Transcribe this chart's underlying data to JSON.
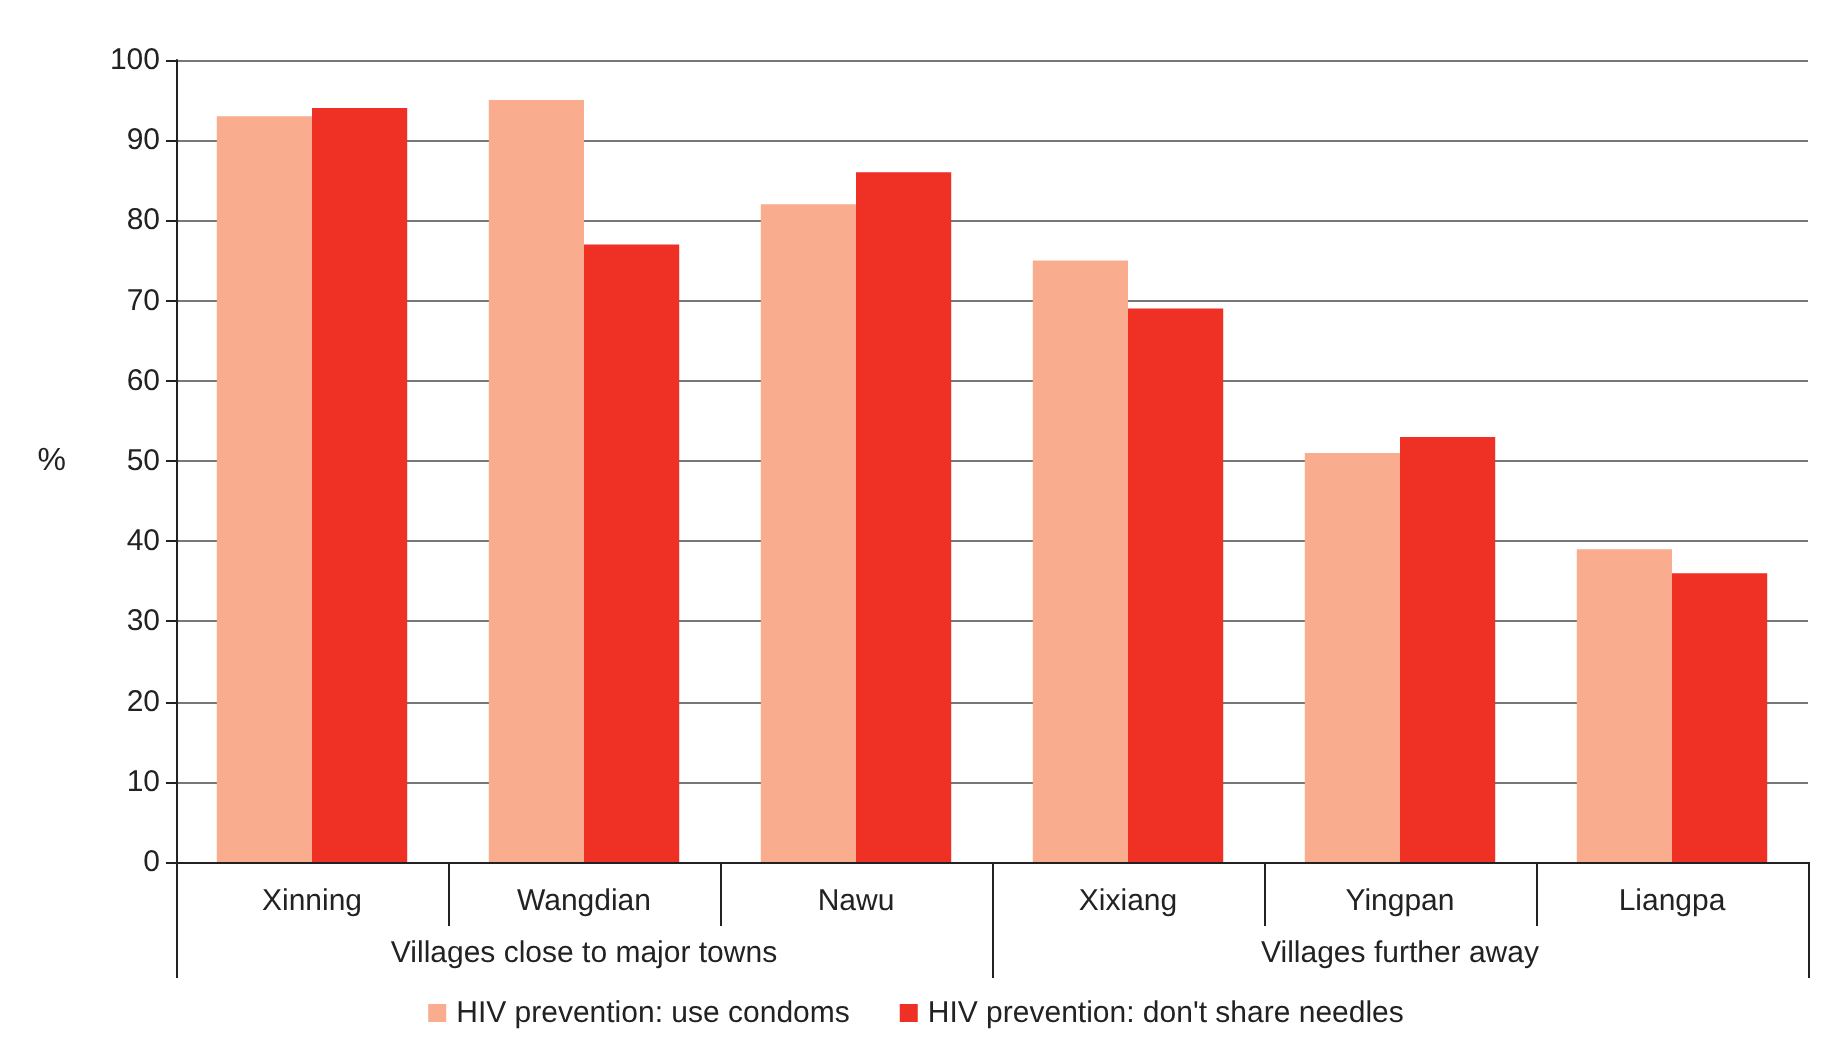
{
  "chart_data": {
    "type": "bar",
    "ylabel": "%",
    "categories": [
      "Xinning",
      "Wangdian",
      "Nawu",
      "Xixiang",
      "Yingpan",
      "Liangpa"
    ],
    "series": [
      {
        "name": "HIV prevention: use condoms",
        "color": "#f9ad8e",
        "values": [
          93,
          95,
          82,
          75,
          51,
          39
        ]
      },
      {
        "name": "HIV prevention: don't share needles",
        "color": "#ee3124",
        "values": [
          94,
          77,
          86,
          69,
          53,
          36
        ]
      }
    ],
    "ylim": [
      0,
      100
    ],
    "yticks": [
      0,
      10,
      20,
      30,
      40,
      50,
      60,
      70,
      80,
      90,
      100
    ],
    "grid": "y",
    "legend": "bottom",
    "annotations": [
      "Villages close to major towns",
      "Villages further away"
    ]
  }
}
